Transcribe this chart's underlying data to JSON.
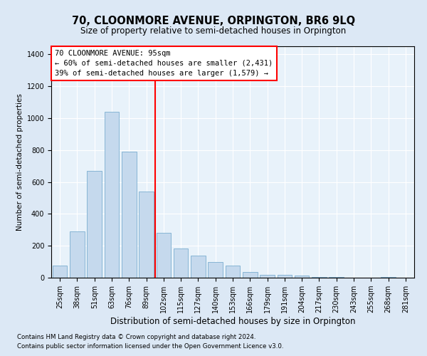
{
  "title": "70, CLOONMORE AVENUE, ORPINGTON, BR6 9LQ",
  "subtitle": "Size of property relative to semi-detached houses in Orpington",
  "xlabel": "Distribution of semi-detached houses by size in Orpington",
  "ylabel": "Number of semi-detached properties",
  "categories": [
    "25sqm",
    "38sqm",
    "51sqm",
    "63sqm",
    "76sqm",
    "89sqm",
    "102sqm",
    "115sqm",
    "127sqm",
    "140sqm",
    "153sqm",
    "166sqm",
    "179sqm",
    "191sqm",
    "204sqm",
    "217sqm",
    "230sqm",
    "243sqm",
    "255sqm",
    "268sqm",
    "281sqm"
  ],
  "values": [
    75,
    290,
    670,
    1040,
    790,
    540,
    280,
    185,
    140,
    100,
    75,
    35,
    20,
    20,
    15,
    5,
    5,
    0,
    0,
    5,
    0
  ],
  "bar_color": "#c5d9ed",
  "bar_edge_color": "#7aaed0",
  "vline_color": "red",
  "legend_text_line1": "70 CLOONMORE AVENUE: 95sqm",
  "legend_text_line2": "← 60% of semi-detached houses are smaller (2,431)",
  "legend_text_line3": "39% of semi-detached houses are larger (1,579) →",
  "ylim": [
    0,
    1450
  ],
  "yticks": [
    0,
    200,
    400,
    600,
    800,
    1000,
    1200,
    1400
  ],
  "footer1": "Contains HM Land Registry data © Crown copyright and database right 2024.",
  "footer2": "Contains public sector information licensed under the Open Government Licence v3.0.",
  "bg_color": "#dce8f5",
  "plot_bg_color": "#e8f2fa",
  "grid_color": "#ffffff",
  "title_fontsize": 10.5,
  "subtitle_fontsize": 8.5,
  "xlabel_fontsize": 8.5,
  "ylabel_fontsize": 7.5,
  "tick_fontsize": 7,
  "legend_fontsize": 7.5,
  "footer_fontsize": 6.2
}
